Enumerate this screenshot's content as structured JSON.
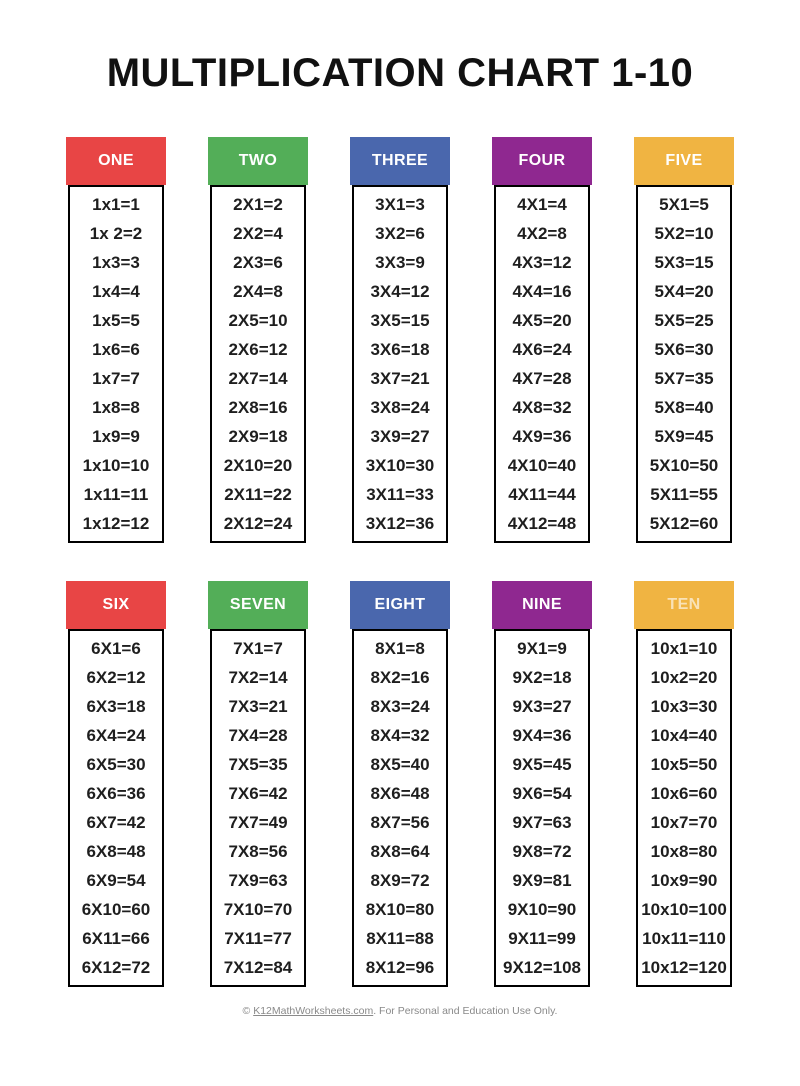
{
  "page_title": "MULTIPLICATION CHART 1-10",
  "footer": {
    "prefix": "© ",
    "link_text": "K12MathWorksheets.com",
    "suffix": ". For Personal and Education Use Only."
  },
  "colors": {
    "red": "#E84545",
    "green": "#53AE58",
    "blue": "#4A67AD",
    "purple": "#8F2890",
    "yellow": "#F0B442",
    "body_text": "#1E1E1E",
    "title_text": "#111111",
    "footer_text": "#8A8A8A"
  },
  "layout_rows": [
    [
      0,
      1,
      2,
      3,
      4
    ],
    [
      5,
      6,
      7,
      8,
      9
    ]
  ],
  "tables": [
    {
      "label": "ONE",
      "header_color": "#E84545",
      "muted_label": false,
      "facts": [
        "1x1=1",
        "1x 2=2",
        "1x3=3",
        "1x4=4",
        "1x5=5",
        "1x6=6",
        "1x7=7",
        "1x8=8",
        "1x9=9",
        "1x10=10",
        "1x11=11",
        "1x12=12"
      ]
    },
    {
      "label": "TWO",
      "header_color": "#53AE58",
      "muted_label": false,
      "facts": [
        "2X1=2",
        "2X2=4",
        "2X3=6",
        "2X4=8",
        "2X5=10",
        "2X6=12",
        "2X7=14",
        "2X8=16",
        "2X9=18",
        "2X10=20",
        "2X11=22",
        "2X12=24"
      ]
    },
    {
      "label": "THREE",
      "header_color": "#4A67AD",
      "muted_label": false,
      "facts": [
        "3X1=3",
        "3X2=6",
        "3X3=9",
        "3X4=12",
        "3X5=15",
        "3X6=18",
        "3X7=21",
        "3X8=24",
        "3X9=27",
        "3X10=30",
        "3X11=33",
        "3X12=36"
      ]
    },
    {
      "label": "FOUR",
      "header_color": "#8F2890",
      "muted_label": false,
      "facts": [
        "4X1=4",
        "4X2=8",
        "4X3=12",
        "4X4=16",
        "4X5=20",
        "4X6=24",
        "4X7=28",
        "4X8=32",
        "4X9=36",
        "4X10=40",
        "4X11=44",
        "4X12=48"
      ]
    },
    {
      "label": "FIVE",
      "header_color": "#F0B442",
      "muted_label": false,
      "facts": [
        "5X1=5",
        "5X2=10",
        "5X3=15",
        "5X4=20",
        "5X5=25",
        "5X6=30",
        "5X7=35",
        "5X8=40",
        "5X9=45",
        "5X10=50",
        "5X11=55",
        "5X12=60"
      ]
    },
    {
      "label": "SIX",
      "header_color": "#E84545",
      "muted_label": false,
      "facts": [
        "6X1=6",
        "6X2=12",
        "6X3=18",
        "6X4=24",
        "6X5=30",
        "6X6=36",
        "6X7=42",
        "6X8=48",
        "6X9=54",
        "6X10=60",
        "6X11=66",
        "6X12=72"
      ]
    },
    {
      "label": "SEVEN",
      "header_color": "#53AE58",
      "muted_label": false,
      "facts": [
        "7X1=7",
        "7X2=14",
        "7X3=21",
        "7X4=28",
        "7X5=35",
        "7X6=42",
        "7X7=49",
        "7X8=56",
        "7X9=63",
        "7X10=70",
        "7X11=77",
        "7X12=84"
      ]
    },
    {
      "label": "EIGHT",
      "header_color": "#4A67AD",
      "muted_label": false,
      "facts": [
        "8X1=8",
        "8X2=16",
        "8X3=24",
        "8X4=32",
        "8X5=40",
        "8X6=48",
        "8X7=56",
        "8X8=64",
        "8X9=72",
        "8X10=80",
        "8X11=88",
        "8X12=96"
      ]
    },
    {
      "label": "NINE",
      "header_color": "#8F2890",
      "muted_label": false,
      "facts": [
        "9X1=9",
        "9X2=18",
        "9X3=27",
        "9X4=36",
        "9X5=45",
        "9X6=54",
        "9X7=63",
        "9X8=72",
        "9X9=81",
        "9X10=90",
        "9X11=99",
        "9X12=108"
      ]
    },
    {
      "label": "TEN",
      "header_color": "#F0B442",
      "muted_label": true,
      "facts": [
        "10x1=10",
        "10x2=20",
        "10x3=30",
        "10x4=40",
        "10x5=50",
        "10x6=60",
        "10x7=70",
        "10x8=80",
        "10x9=90",
        "10x10=100",
        "10x11=110",
        "10x12=120"
      ]
    }
  ]
}
